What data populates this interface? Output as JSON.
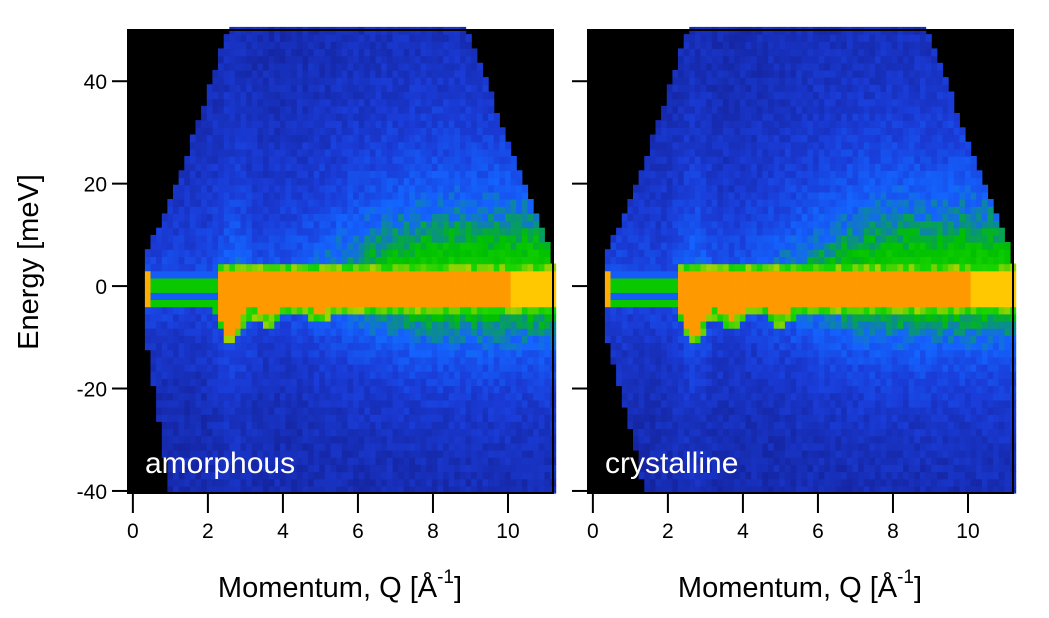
{
  "chart_data": {
    "type": "heatmap",
    "ylabel": "Energy  [meV]",
    "xlabel_main": "Momentum, Q  [Å",
    "xlabel_sup": "-1",
    "xlabel_close": "]",
    "xlim": [
      -0.13,
      11.2
    ],
    "ylim": [
      -40.4,
      50
    ],
    "xticks": [
      0,
      2,
      4,
      6,
      8,
      10
    ],
    "xtick_labels": [
      "0",
      "2",
      "4",
      "6",
      "8",
      "10"
    ],
    "yticks": [
      40,
      20,
      0,
      -20,
      -40
    ],
    "ytick_labels": [
      "40",
      "20",
      "0",
      "-20",
      "-40"
    ],
    "colormap": [
      "#101070",
      "#1a3cd8",
      "#1464ff",
      "#00c000",
      "#18d400",
      "#ffd000",
      "#ff9900"
    ],
    "background": "#000000",
    "elastic_line_energy": 0,
    "panels": [
      {
        "label": "amorphous",
        "coverage_bottom_left_q": 1.0,
        "dip_q": [
          2.6,
          3.6,
          5.0
        ],
        "dip_depth": [
          6,
          2.5,
          1.5
        ]
      },
      {
        "label": "crystalline",
        "coverage_bottom_left_q": 1.4,
        "dip_q": [
          2.7,
          3.7,
          5.0
        ],
        "dip_depth": [
          6,
          3,
          2.5
        ]
      }
    ]
  }
}
